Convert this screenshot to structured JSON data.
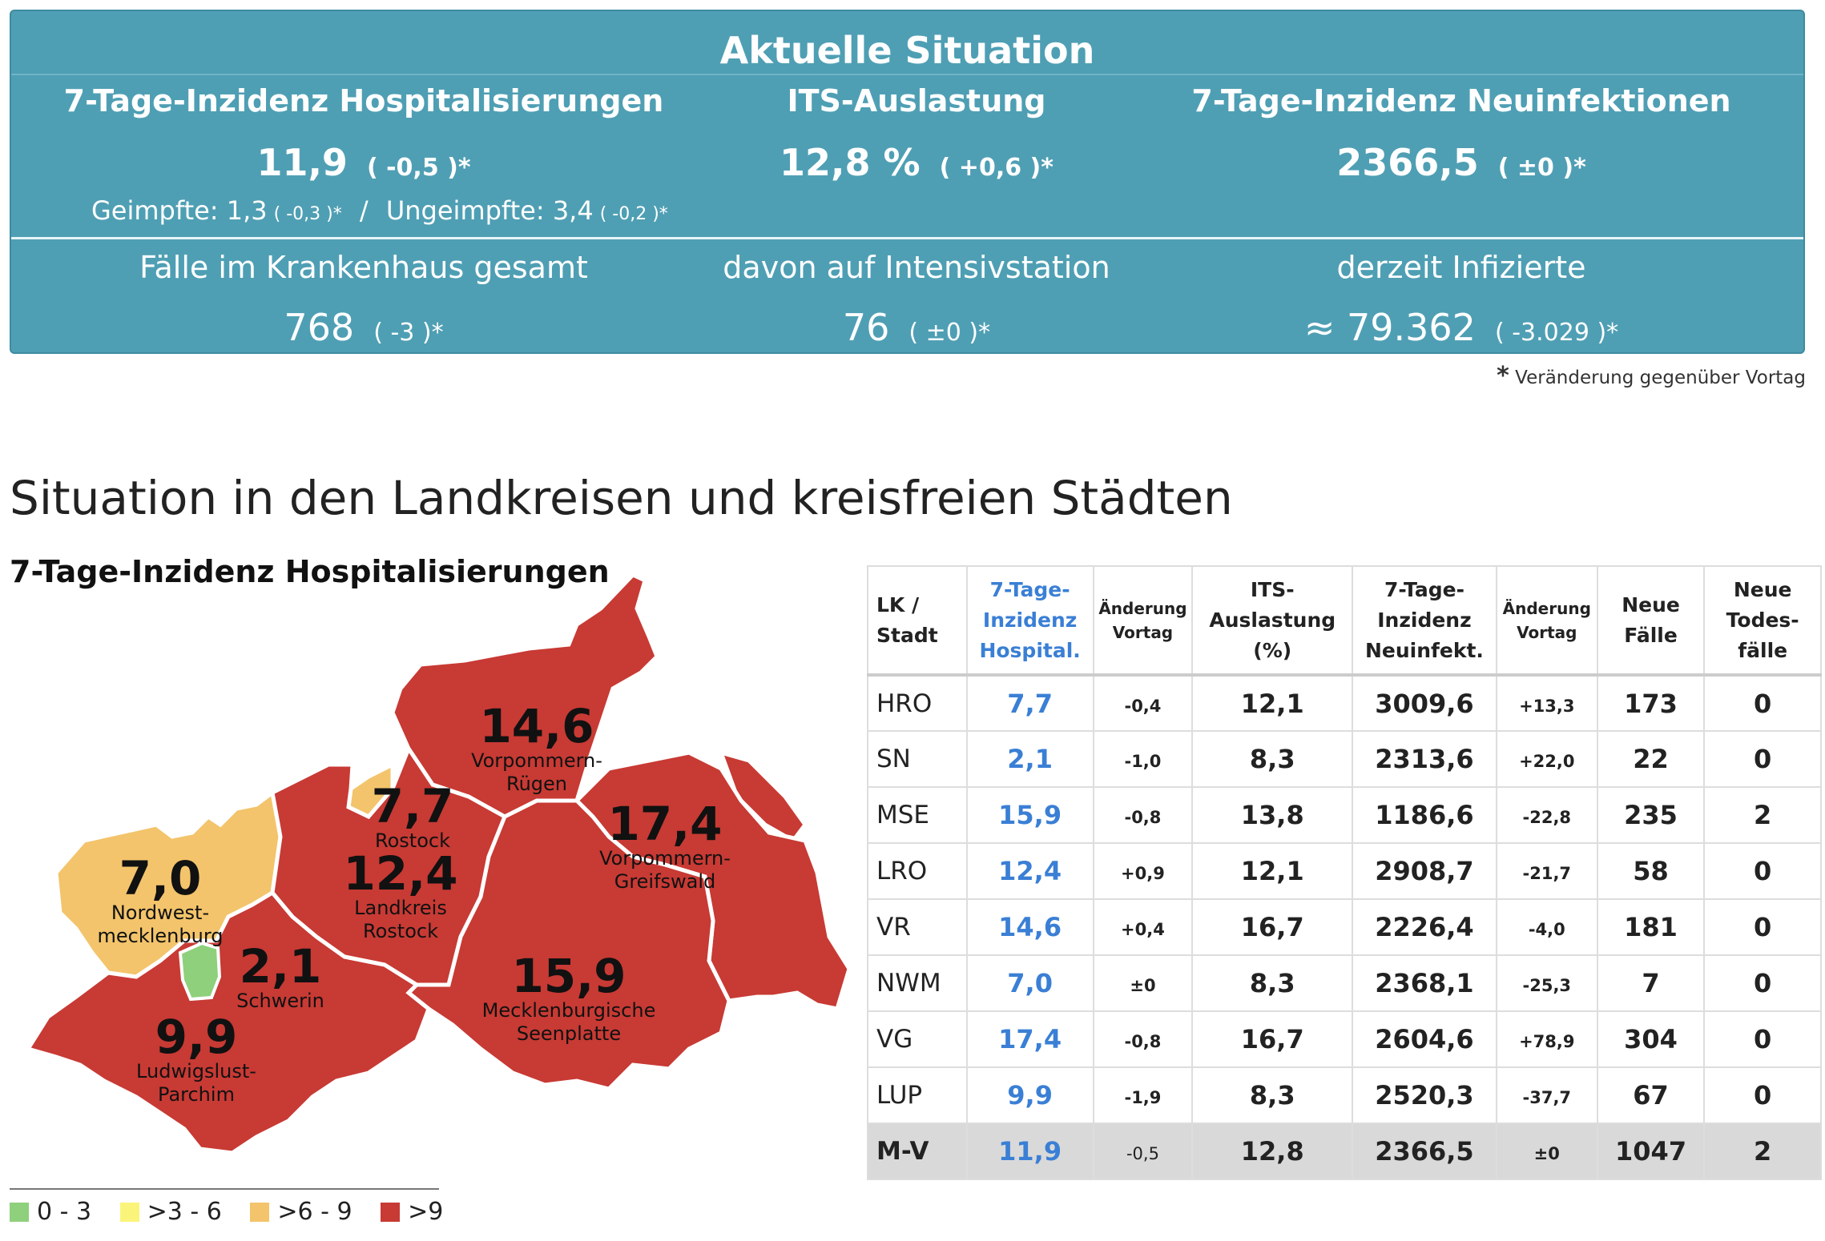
{
  "panel": {
    "title": "Aktuelle Situation",
    "hosp": {
      "label": "7-Tage-Inzidenz Hospitalisierungen",
      "value": "11,9",
      "change": "( -0,5 )*"
    },
    "its": {
      "label": "ITS-Auslastung",
      "value": "12,8 %",
      "change": "( +0,6 )*"
    },
    "neu": {
      "label": "7-Tage-Inzidenz Neuinfektionen",
      "value": "2366,5",
      "change": "( ±0 )*"
    },
    "vacc": {
      "geimpft_label": "Geimpfte: 1,3",
      "geimpft_change": "( -0,3 )*",
      "sep": "/",
      "ungeimpft_label": "Ungeimpfte: 3,4",
      "ungeimpft_change": "( -0,2 )*"
    },
    "kh": {
      "label": "Fälle im Krankenhaus gesamt",
      "value": "768",
      "change": "( -3 )*"
    },
    "intensiv": {
      "label": "davon auf Intensivstation",
      "value": "76",
      "change": "( ±0 )*"
    },
    "infiz": {
      "label": "derzeit Infizierte",
      "value": "≈ 79.362",
      "change": "( -3.029 )*"
    }
  },
  "footnote": {
    "star": "*",
    "text": "Veränderung gegenüber Vortag"
  },
  "section_title": "Situation in den Landkreisen und kreisfreien Städten",
  "map": {
    "title": "7-Tage-Inzidenz Hospitalisierungen",
    "colors": {
      "c0_3": "#8fd07c",
      "c3_6": "#fbf47a",
      "c6_9": "#f3c46b",
      "c9": "#c83a34"
    },
    "regions": {
      "vr": {
        "value": "14,6",
        "name1": "Vorpommern-",
        "name2": "Rügen"
      },
      "hro": {
        "value": "7,7",
        "name1": "Rostock"
      },
      "vg": {
        "value": "17,4",
        "name1": "Vorpommern-",
        "name2": "Greifswald"
      },
      "nwm": {
        "value": "7,0",
        "name1": "Nordwest-",
        "name2": "mecklenburg"
      },
      "lro": {
        "value": "12,4",
        "name1": "Landkreis",
        "name2": "Rostock"
      },
      "sn": {
        "value": "2,1",
        "name1": "Schwerin"
      },
      "mse": {
        "value": "15,9",
        "name1": "Mecklenburgische",
        "name2": "Seenplatte"
      },
      "lup": {
        "value": "9,9",
        "name1": "Ludwigslust-",
        "name2": "Parchim"
      }
    },
    "legend": [
      {
        "label": "0 - 3",
        "color": "#8fd07c"
      },
      {
        "label": ">3 - 6",
        "color": "#fbf47a"
      },
      {
        "label": ">6 - 9",
        "color": "#f3c46b"
      },
      {
        "label": ">9",
        "color": "#c83a34"
      }
    ]
  },
  "table": {
    "headers": {
      "lk": [
        "LK /",
        "Stadt"
      ],
      "hosp": [
        "7-Tage-",
        "Inzidenz",
        "Hospital."
      ],
      "hosp_chg": [
        "Änderung",
        "Vortag"
      ],
      "its": [
        "ITS-",
        "Auslastung",
        "(%)"
      ],
      "neu": [
        "7-Tage-",
        "Inzidenz",
        "Neuinfekt."
      ],
      "neu_chg": [
        "Änderung",
        "Vortag"
      ],
      "faelle": [
        "Neue",
        "Fälle"
      ],
      "tod": [
        "Neue",
        "Todes-",
        "fälle"
      ]
    },
    "rows": [
      {
        "lk": "HRO",
        "hosp": "7,7",
        "hosp_chg": "-0,4",
        "its": "12,1",
        "neu": "3009,6",
        "neu_chg": "+13,3",
        "faelle": "173",
        "tod": "0"
      },
      {
        "lk": "SN",
        "hosp": "2,1",
        "hosp_chg": "-1,0",
        "its": "8,3",
        "neu": "2313,6",
        "neu_chg": "+22,0",
        "faelle": "22",
        "tod": "0"
      },
      {
        "lk": "MSE",
        "hosp": "15,9",
        "hosp_chg": "-0,8",
        "its": "13,8",
        "neu": "1186,6",
        "neu_chg": "-22,8",
        "faelle": "235",
        "tod": "2"
      },
      {
        "lk": "LRO",
        "hosp": "12,4",
        "hosp_chg": "+0,9",
        "its": "12,1",
        "neu": "2908,7",
        "neu_chg": "-21,7",
        "faelle": "58",
        "tod": "0"
      },
      {
        "lk": "VR",
        "hosp": "14,6",
        "hosp_chg": "+0,4",
        "its": "16,7",
        "neu": "2226,4",
        "neu_chg": "-4,0",
        "faelle": "181",
        "tod": "0"
      },
      {
        "lk": "NWM",
        "hosp": "7,0",
        "hosp_chg": "±0",
        "its": "8,3",
        "neu": "2368,1",
        "neu_chg": "-25,3",
        "faelle": "7",
        "tod": "0"
      },
      {
        "lk": "VG",
        "hosp": "17,4",
        "hosp_chg": "-0,8",
        "its": "16,7",
        "neu": "2604,6",
        "neu_chg": "+78,9",
        "faelle": "304",
        "tod": "0"
      },
      {
        "lk": "LUP",
        "hosp": "9,9",
        "hosp_chg": "-1,9",
        "its": "8,3",
        "neu": "2520,3",
        "neu_chg": "-37,7",
        "faelle": "67",
        "tod": "0"
      }
    ],
    "total": {
      "lk": "M-V",
      "hosp": "11,9",
      "hosp_chg": "-0,5",
      "its": "12,8",
      "neu": "2366,5",
      "neu_chg": "±0",
      "faelle": "1047",
      "tod": "2"
    }
  }
}
